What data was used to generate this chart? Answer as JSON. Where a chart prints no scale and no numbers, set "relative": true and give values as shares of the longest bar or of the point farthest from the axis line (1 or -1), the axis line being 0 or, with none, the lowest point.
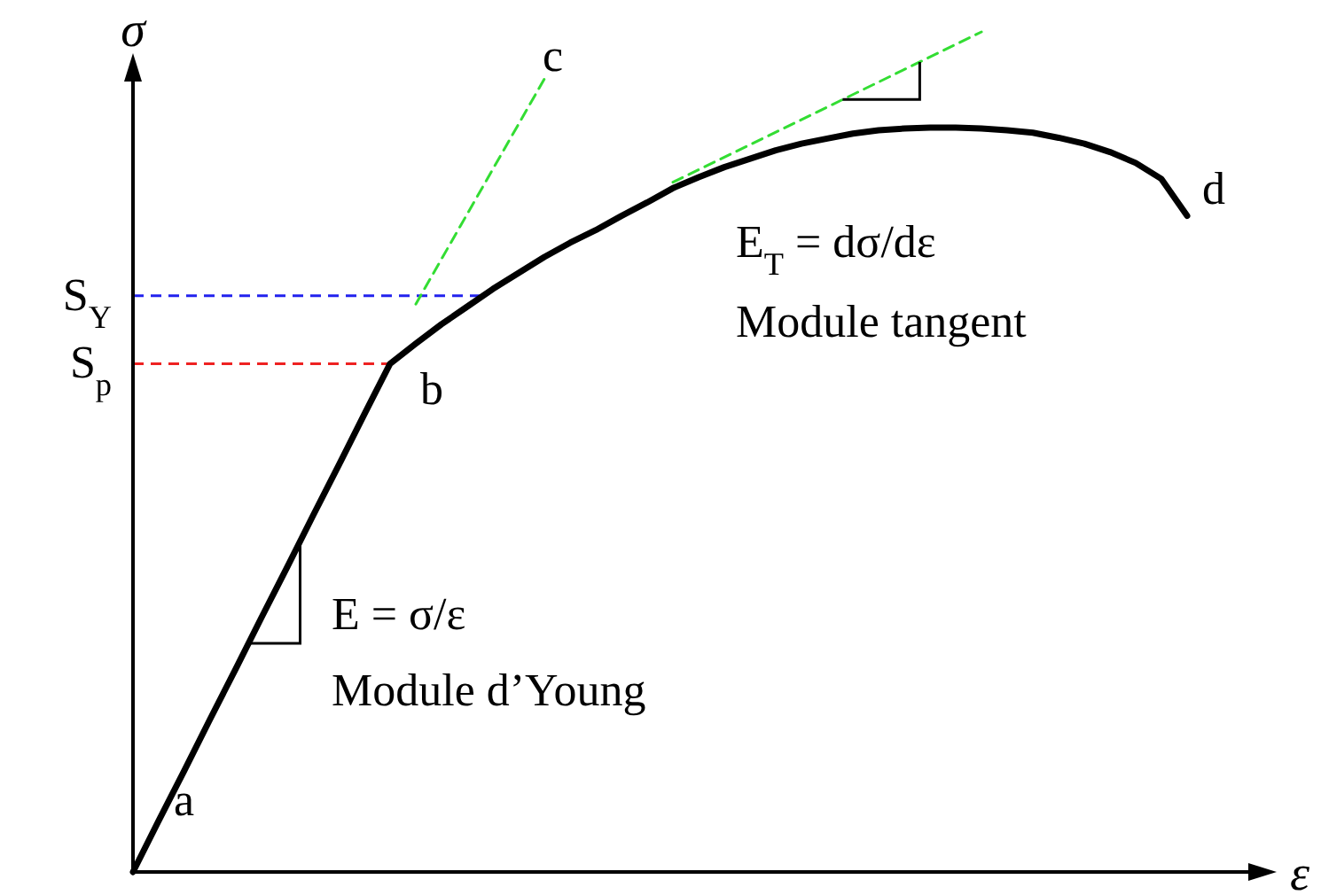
{
  "chart_data": {
    "type": "line",
    "relative": true,
    "xlabel": "ε",
    "ylabel": "σ",
    "categories": [
      null,
      null,
      null,
      null,
      null,
      null,
      null,
      null,
      null,
      null,
      null,
      null,
      null,
      null,
      null,
      null,
      null,
      null,
      null,
      null,
      null,
      null,
      null,
      null,
      null,
      null,
      null,
      null,
      null,
      null,
      null,
      null,
      null,
      null,
      null,
      null,
      null,
      null,
      null,
      null,
      null,
      null
    ],
    "series": [
      {
        "color": "#000000",
        "line_style": "solid",
        "values": [
          0,
          0.061,
          0.121,
          0.182,
          0.242,
          0.303,
          0.363,
          0.424,
          0.484,
          0.545,
          0.605,
          0.629,
          0.652,
          0.673,
          0.694,
          0.713,
          0.732,
          0.749,
          0.764,
          0.781,
          0.797,
          0.814,
          0.827,
          0.839,
          0.849,
          0.859,
          0.867,
          0.873,
          0.879,
          0.883,
          0.885,
          0.886,
          0.886,
          0.885,
          0.883,
          0.88,
          0.874,
          0.867,
          0.857,
          0.844,
          0.825,
          0.781
        ]
      },
      {
        "color": "#33dd33",
        "line_style": "dashed",
        "values": [
          null,
          null,
          null,
          null,
          null,
          null,
          null,
          null,
          null,
          null,
          null,
          0.676,
          null,
          null,
          null,
          null,
          0.944,
          null,
          null,
          null,
          null,
          null,
          null,
          null,
          null,
          null,
          null,
          null,
          null,
          null,
          null,
          null,
          null,
          null,
          null,
          null,
          null,
          null,
          null,
          null,
          null,
          null
        ]
      },
      {
        "color": "#33dd33",
        "line_style": "dashed",
        "values": [
          null,
          null,
          null,
          null,
          null,
          null,
          null,
          null,
          null,
          null,
          null,
          null,
          null,
          null,
          null,
          null,
          null,
          null,
          null,
          null,
          null,
          0.821,
          null,
          null,
          null,
          null,
          null,
          null,
          null,
          null,
          null,
          null,
          null,
          1,
          null,
          null,
          null,
          null,
          null,
          null,
          null,
          null
        ]
      }
    ],
    "ref_lines": [
      {
        "axis": "y",
        "value": 0.686,
        "label": "S$_{Y}$",
        "color": "#2222ee",
        "line_style": "dashed"
      },
      {
        "axis": "y",
        "value": 0.605,
        "label": "S$_{p}$",
        "color": "#ee2222",
        "line_style": "dashed"
      }
    ],
    "annotations": [
      "a",
      "b",
      "c",
      "d",
      "E = σ/ε",
      "Module d’Young",
      "E$_{T}$ = dσ/dε",
      "Module tangent"
    ]
  }
}
